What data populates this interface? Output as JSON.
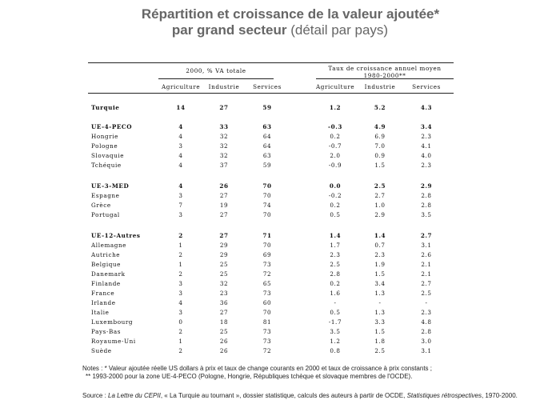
{
  "title": {
    "line1": "Répartition et croissance de la valeur ajoutée*",
    "line2_bold": "par grand secteur",
    "line2_rest": " (détail par pays)"
  },
  "table": {
    "group1": "2000, % VA totale",
    "group2_line1": "Taux de croissance annuel moyen",
    "group2_line2": "1980-2000**",
    "columns": [
      "Agriculture",
      "Industrie",
      "Services",
      "Agriculture",
      "Industrie",
      "Services"
    ],
    "rows": [
      {
        "label": "Turquie",
        "bold": true,
        "values": [
          "14",
          "27",
          "59",
          "1.2",
          "5.2",
          "4.3"
        ]
      },
      {
        "label": "UE-4-PECO",
        "bold": true,
        "values": [
          "4",
          "33",
          "63",
          "-0.3",
          "4.9",
          "3.4"
        ]
      },
      {
        "label": "Hongrie",
        "bold": false,
        "values": [
          "4",
          "32",
          "64",
          "0.2",
          "6.9",
          "2.3"
        ]
      },
      {
        "label": "Pologne",
        "bold": false,
        "values": [
          "3",
          "32",
          "64",
          "-0.7",
          "7.0",
          "4.1"
        ]
      },
      {
        "label": "Slovaquie",
        "bold": false,
        "values": [
          "4",
          "32",
          "63",
          "2.0",
          "0.9",
          "4.0"
        ]
      },
      {
        "label": "Tchéquie",
        "bold": false,
        "values": [
          "4",
          "37",
          "59",
          "-0.9",
          "1.5",
          "2.3"
        ]
      },
      {
        "label": "UE-3-MED",
        "bold": true,
        "values": [
          "4",
          "26",
          "70",
          "0.0",
          "2.5",
          "2.9"
        ]
      },
      {
        "label": "Espagne",
        "bold": false,
        "values": [
          "3",
          "27",
          "70",
          "-0.2",
          "2.7",
          "2.8"
        ]
      },
      {
        "label": "Grèce",
        "bold": false,
        "values": [
          "7",
          "19",
          "74",
          "0.2",
          "1.0",
          "2.8"
        ]
      },
      {
        "label": "Portugal",
        "bold": false,
        "values": [
          "3",
          "27",
          "70",
          "0.5",
          "2.9",
          "3.5"
        ]
      },
      {
        "label": "UE-12-Autres",
        "bold": true,
        "values": [
          "2",
          "27",
          "71",
          "1.4",
          "1.4",
          "2.7"
        ]
      },
      {
        "label": "Allemagne",
        "bold": false,
        "values": [
          "1",
          "29",
          "70",
          "1.7",
          "0.7",
          "3.1"
        ]
      },
      {
        "label": "Autriche",
        "bold": false,
        "values": [
          "2",
          "29",
          "69",
          "2.3",
          "2.3",
          "2.6"
        ]
      },
      {
        "label": "Belgique",
        "bold": false,
        "values": [
          "1",
          "25",
          "73",
          "2.5",
          "1.9",
          "2.1"
        ]
      },
      {
        "label": "Danemark",
        "bold": false,
        "values": [
          "2",
          "25",
          "72",
          "2.8",
          "1.5",
          "2.1"
        ]
      },
      {
        "label": "Finlande",
        "bold": false,
        "values": [
          "3",
          "32",
          "65",
          "0.2",
          "3.4",
          "2.7"
        ]
      },
      {
        "label": "France",
        "bold": false,
        "values": [
          "3",
          "23",
          "73",
          "1.6",
          "1.3",
          "2.5"
        ]
      },
      {
        "label": "Irlande",
        "bold": false,
        "values": [
          "4",
          "36",
          "60",
          "-",
          "-",
          "-"
        ]
      },
      {
        "label": "Italie",
        "bold": false,
        "values": [
          "3",
          "27",
          "70",
          "0.5",
          "1.3",
          "2.3"
        ]
      },
      {
        "label": "Luxembourg",
        "bold": false,
        "values": [
          "0",
          "18",
          "81",
          "-1.7",
          "3.3",
          "4.8"
        ]
      },
      {
        "label": "Pays-Bas",
        "bold": false,
        "values": [
          "2",
          "25",
          "73",
          "3.5",
          "1.5",
          "2.8"
        ]
      },
      {
        "label": "Royaume-Uni",
        "bold": false,
        "values": [
          "1",
          "26",
          "73",
          "1.2",
          "1.8",
          "3.0"
        ]
      },
      {
        "label": "Suède",
        "bold": false,
        "values": [
          "2",
          "26",
          "72",
          "0.8",
          "2.5",
          "3.1"
        ]
      }
    ]
  },
  "notes": {
    "line1": "Notes : * Valeur ajoutée réelle US dollars à prix et taux de change courants en 2000 et taux de croissance à prix constants ;",
    "line2": "** 1993-2000 pour la zone UE-4-PECO (Pologne, Hongrie, Républiques tchèque et slovaque membres de l'OCDE)."
  },
  "source": {
    "prefix": "Source : ",
    "publication": "La Lettre du CEPII",
    "middle": ", « La Turquie au  tournant », dossier statistique, calculs des auteurs à partir de OCDE, ",
    "stats": "Statistiques rétrospectives",
    "end": ", 1970-2000."
  }
}
